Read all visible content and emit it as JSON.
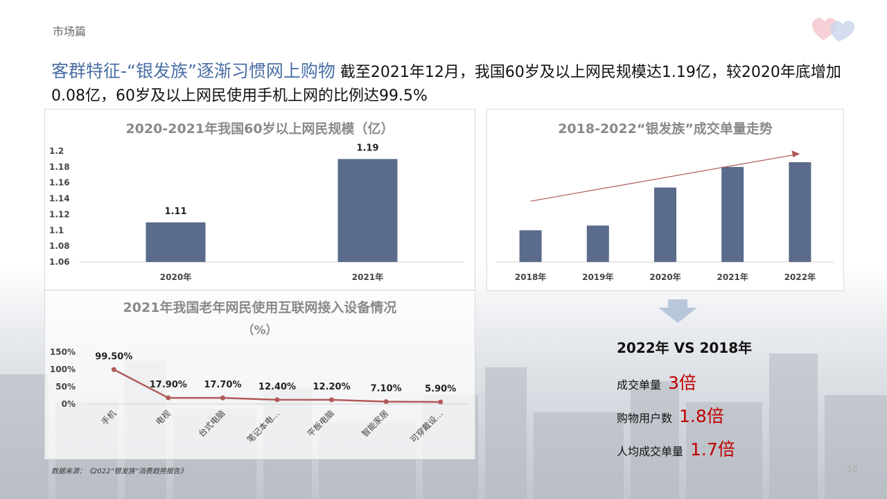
{
  "slide": {
    "section": "市场篇",
    "headline_accent": "客群特征-“银发族”逐渐习惯网上购物",
    "headline_text": " 截至2021年12月，我国60岁及以上网民规模达1.19亿，较2020年底增加0.08亿，60岁及以上网民使用手机上网的比例达99.5%",
    "source": "数据来源：《2022“银发族”消费趋势报告》",
    "page_number": "10"
  },
  "comparison": {
    "title": "2022年 VS 2018年",
    "items": [
      {
        "label": "成交单量",
        "value": "3倍"
      },
      {
        "label": "购物用户数",
        "value": "1.8倍"
      },
      {
        "label": "人均成交单量",
        "value": "1.7倍"
      }
    ]
  },
  "colors": {
    "bar": "#5a6b8c",
    "line": "#b05a5a",
    "accent_title": "#4a6fa5",
    "highlight": "#c00000"
  },
  "chart_data": [
    {
      "type": "bar",
      "title": "2020-2021年我国60岁以上网民规模（亿）",
      "categories": [
        "2020年",
        "2021年"
      ],
      "values": [
        1.11,
        1.19
      ],
      "data_labels": [
        "1.11",
        "1.19"
      ],
      "ylim": [
        1.06,
        1.2
      ],
      "yticks": [
        "1.06",
        "1.08",
        "1.1",
        "1.12",
        "1.14",
        "1.16",
        "1.18",
        "1.2"
      ],
      "grid": false
    },
    {
      "type": "bar",
      "title": "2018-2022“银发族”成交单量走势",
      "categories": [
        "2018年",
        "2019年",
        "2020年",
        "2021年",
        "2022年"
      ],
      "values": [
        1.0,
        1.15,
        2.35,
        3.0,
        3.15
      ],
      "trend_arrow": true,
      "yaxis_visible": false
    },
    {
      "type": "line",
      "title": "2021年我国老年网民使用互联网接入设备情况",
      "subtitle": "（%）",
      "categories": [
        "手机",
        "电视",
        "台式电脑",
        "笔记本电…",
        "平板电脑",
        "智能家居",
        "可穿戴设…"
      ],
      "values": [
        99.5,
        17.9,
        17.7,
        12.4,
        12.2,
        7.1,
        5.9
      ],
      "data_labels": [
        "99.50%",
        "17.90%",
        "17.70%",
        "12.40%",
        "12.20%",
        "7.10%",
        "5.90%"
      ],
      "ylim": [
        0,
        150
      ],
      "yticks": [
        "0%",
        "50%",
        "100%",
        "150%"
      ]
    }
  ]
}
